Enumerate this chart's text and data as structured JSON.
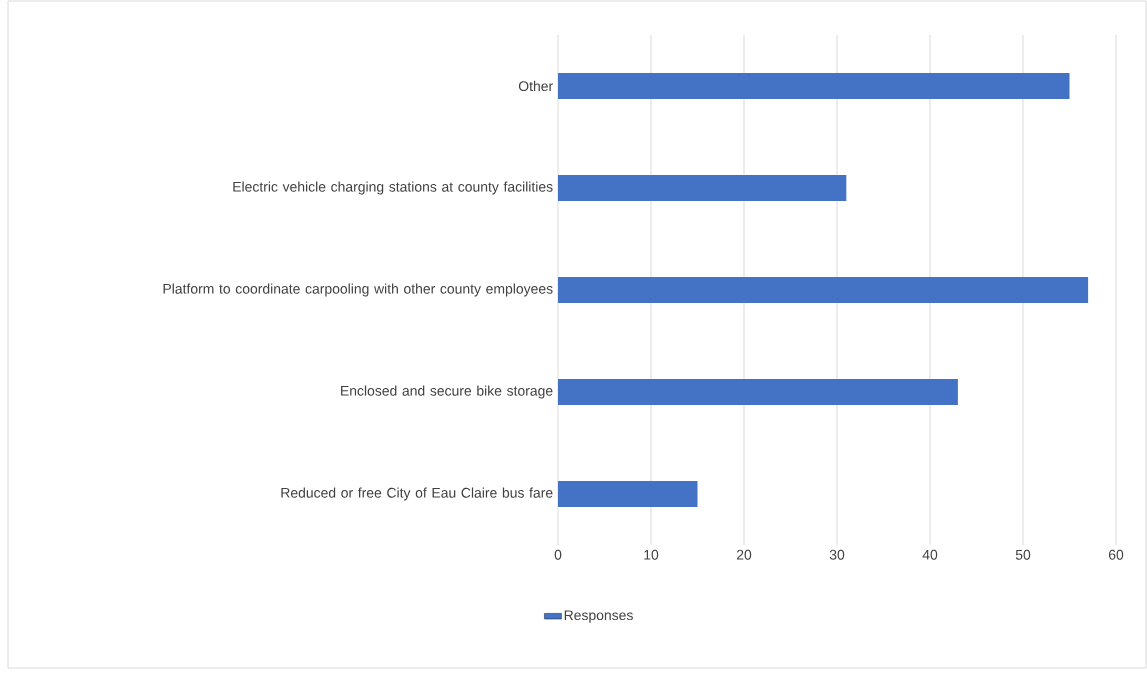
{
  "chart_data": {
    "type": "bar",
    "orientation": "horizontal",
    "categories": [
      "Other",
      "Electric vehicle charging stations at county facilities",
      "Platform to coordinate carpooling with other county employees",
      "Enclosed and secure bike storage",
      "Reduced or free City of Eau Claire bus fare"
    ],
    "series": [
      {
        "name": "Responses",
        "color": "#4472c4",
        "values": [
          55,
          31,
          57,
          43,
          15
        ]
      }
    ],
    "xlim": [
      0,
      60
    ],
    "xticks": [
      0,
      10,
      20,
      30,
      40,
      50,
      60
    ],
    "grid": "x",
    "legend": "bottom"
  }
}
